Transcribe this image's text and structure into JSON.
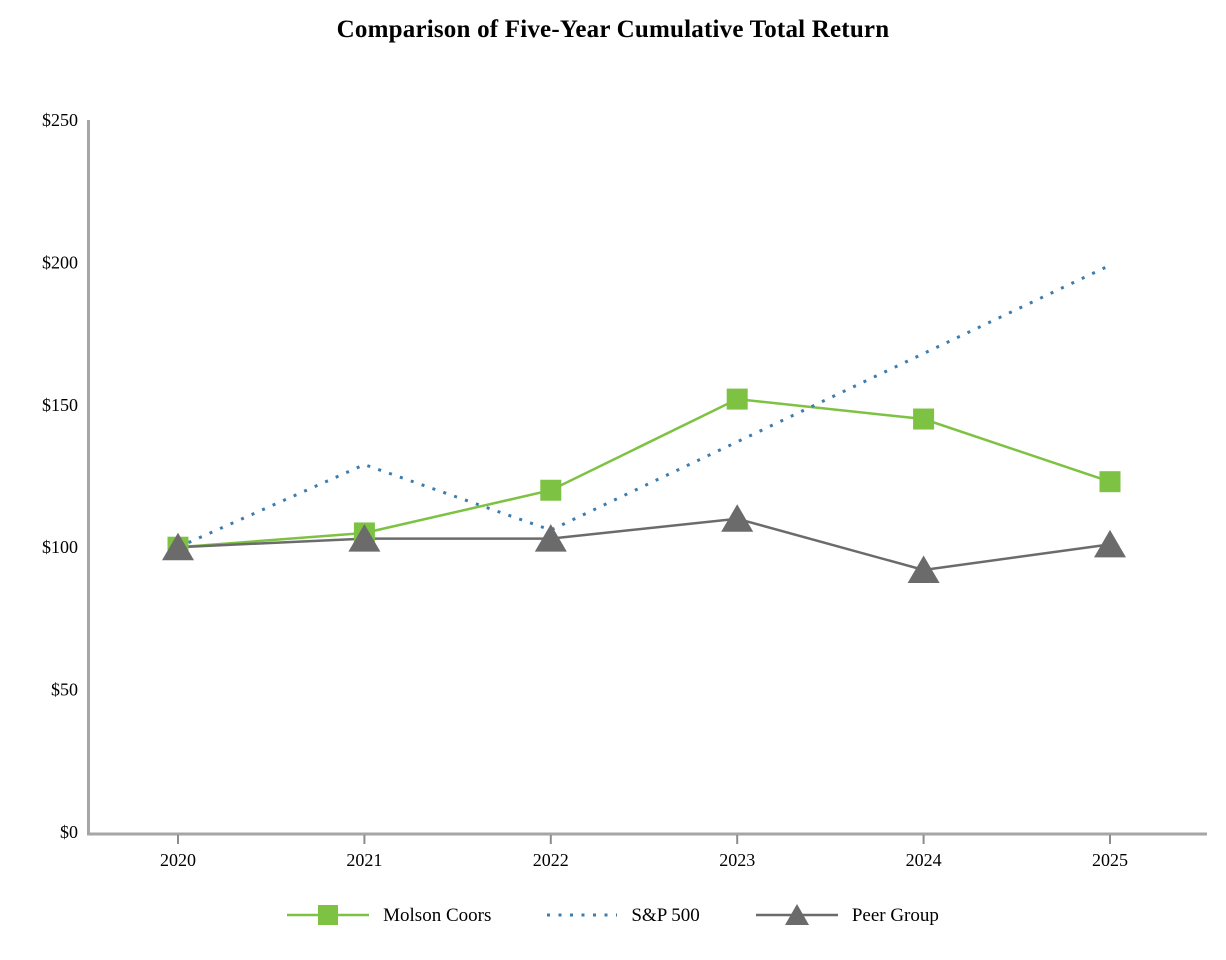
{
  "title": "Comparison of Five-Year Cumulative Total Return",
  "chart_data": {
    "type": "line",
    "title": "Comparison of Five-Year Cumulative Total Return",
    "categories": [
      "2020",
      "2021",
      "2022",
      "2023",
      "2024",
      "2025"
    ],
    "series": [
      {
        "name": "Molson Coors",
        "values": [
          100,
          105,
          120,
          152,
          145,
          123
        ],
        "color": "#7DC242",
        "marker": "square",
        "line_style": "solid"
      },
      {
        "name": "S&P 500",
        "values": [
          100,
          129,
          106,
          137,
          168,
          199
        ],
        "color": "#3C7CAE",
        "marker": "none",
        "line_style": "dotted"
      },
      {
        "name": "Peer Group",
        "values": [
          100,
          103,
          103,
          110,
          92,
          101
        ],
        "color": "#6B6B6B",
        "marker": "triangle",
        "line_style": "solid"
      }
    ],
    "xlabel": "",
    "ylabel": "",
    "ylim": [
      0,
      250
    ],
    "y_tick_step": 50,
    "y_tick_labels": [
      "$0",
      "$50",
      "$100",
      "$150",
      "$200",
      "$250"
    ],
    "y_tick_prefix": "$",
    "grid": false,
    "legend_position": "bottom",
    "axis_color": "#A6A6A6",
    "tick_color": "#8C8C8C",
    "text_color": "#000000"
  }
}
